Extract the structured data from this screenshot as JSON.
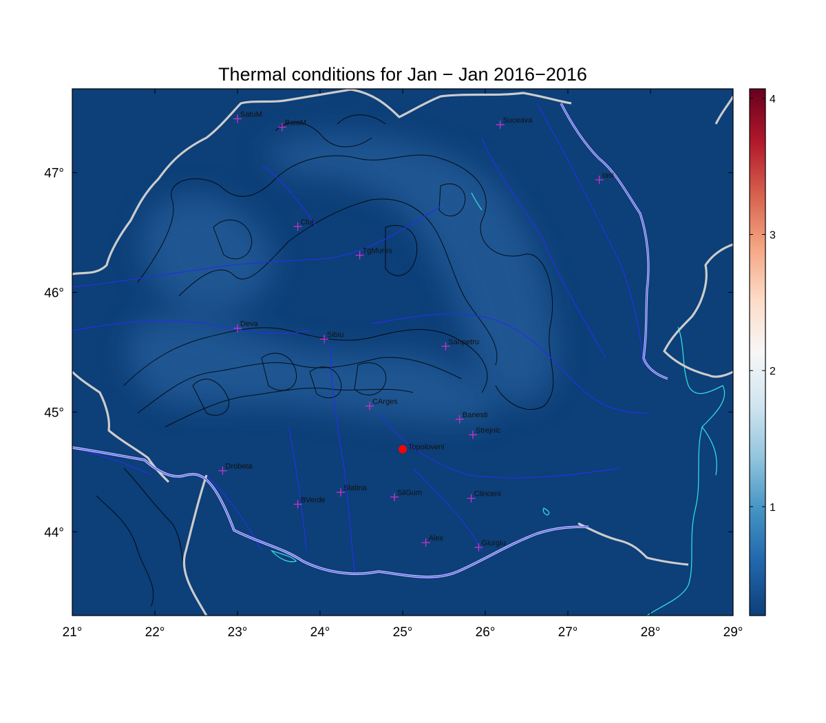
{
  "title": "Thermal conditions for Jan − Jan  2016−2016",
  "map": {
    "lon_range": [
      21,
      29
    ],
    "lat_range": [
      43.3,
      47.7
    ],
    "lon_ticks": [
      21,
      22,
      23,
      24,
      25,
      26,
      27,
      28,
      29
    ],
    "lat_ticks": [
      44,
      45,
      46,
      47
    ],
    "lon_tick_labels": [
      "21°",
      "22°",
      "23°",
      "24°",
      "25°",
      "26°",
      "27°",
      "28°",
      "29°"
    ],
    "lat_tick_labels": [
      "44°",
      "45°",
      "46°",
      "47°"
    ],
    "background_color": "#0d3f78",
    "highlight_color": "#2f6aa8",
    "border_color": "#cccccc",
    "river_color": "#2233dd",
    "danube_color": "#b8b8ff",
    "lake_color": "#33dddd",
    "contour_color": "#000000",
    "station_marker_color": "#cc33cc",
    "site_marker_color": "#ff0000"
  },
  "stations": [
    {
      "name": "SatuM",
      "lon": 23.0,
      "lat": 47.45
    },
    {
      "name": "BaiaM",
      "lon": 23.54,
      "lat": 47.38
    },
    {
      "name": "Suceava",
      "lon": 26.18,
      "lat": 47.4
    },
    {
      "name": "Iasi",
      "lon": 27.38,
      "lat": 46.94
    },
    {
      "name": "Cluj",
      "lon": 23.73,
      "lat": 46.55
    },
    {
      "name": "TgMures",
      "lon": 24.48,
      "lat": 46.31
    },
    {
      "name": "Deva",
      "lon": 23.0,
      "lat": 45.7
    },
    {
      "name": "Sibiu",
      "lon": 24.05,
      "lat": 45.61
    },
    {
      "name": "Sanpetru",
      "lon": 25.52,
      "lat": 45.55
    },
    {
      "name": "CArges",
      "lon": 24.6,
      "lat": 45.05
    },
    {
      "name": "Banesti",
      "lon": 25.69,
      "lat": 44.94
    },
    {
      "name": "Strejnic",
      "lon": 25.85,
      "lat": 44.81
    },
    {
      "name": "Drobeta",
      "lon": 22.82,
      "lat": 44.51
    },
    {
      "name": "Slatina",
      "lon": 24.25,
      "lat": 44.33
    },
    {
      "name": "SilGum",
      "lon": 24.9,
      "lat": 44.29
    },
    {
      "name": "Clinceni",
      "lon": 25.83,
      "lat": 44.28
    },
    {
      "name": "BVerde",
      "lon": 23.73,
      "lat": 44.23
    },
    {
      "name": "Alex",
      "lon": 25.28,
      "lat": 43.91
    },
    {
      "name": "Giurgiu",
      "lon": 25.92,
      "lat": 43.87
    }
  ],
  "site": {
    "name": "Topoloveni",
    "lon": 25.0,
    "lat": 44.69
  },
  "colorbar": {
    "min": 0.2,
    "max": 4.07,
    "ticks": [
      1,
      2,
      3,
      4
    ],
    "tick_labels": [
      "1",
      "2",
      "3",
      "4"
    ],
    "colors": [
      "#0d3f78",
      "#2166ac",
      "#4393c3",
      "#92c5de",
      "#d1e5f0",
      "#f7f7f7",
      "#fddbc7",
      "#f4a582",
      "#d6604d",
      "#b2182b",
      "#67001f"
    ]
  }
}
